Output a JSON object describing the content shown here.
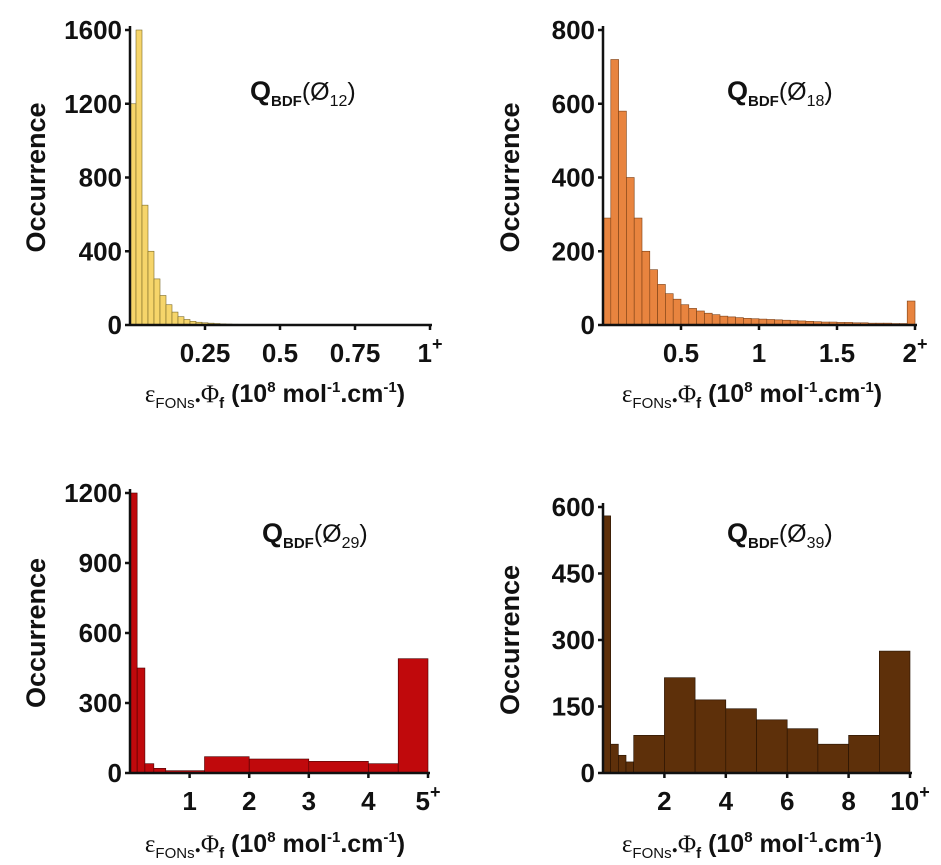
{
  "chart_data": [
    {
      "type": "bar",
      "title": "Q",
      "title_sub": "BDF",
      "title_paren": "(Ø",
      "title_index": "12",
      "title_close": ")",
      "ylabel": "Occurrence",
      "xlabel": {
        "eps": "ε",
        "eps_sub": "FONs",
        "dot": ".",
        "phi": "Φ",
        "phi_sub": "f",
        "unit_open": " (10",
        "unit_exp": "8",
        "unit_mid": " mol",
        "unit_exp2": "-1",
        "unit_mid2": ".cm",
        "unit_exp3": "-1",
        "unit_close": ")"
      },
      "xlim": [
        0,
        1
      ],
      "ylim": [
        0,
        1600
      ],
      "xticks": [
        {
          "v": 0.25,
          "label": "0.25"
        },
        {
          "v": 0.5,
          "label": "0.5"
        },
        {
          "v": 0.75,
          "label": "0.75"
        },
        {
          "v": 1,
          "label": "1",
          "sup": "+"
        }
      ],
      "yticks": [
        {
          "v": 0,
          "label": "0"
        },
        {
          "v": 400,
          "label": "400"
        },
        {
          "v": 800,
          "label": "800"
        },
        {
          "v": 1200,
          "label": "1200"
        },
        {
          "v": 1600,
          "label": "1600"
        }
      ],
      "bin_width": 0.02,
      "bin_start": 0,
      "values": [
        1200,
        1600,
        650,
        400,
        250,
        160,
        110,
        70,
        45,
        30,
        20,
        15,
        12,
        10,
        8,
        6,
        5,
        4,
        3,
        3,
        2,
        2,
        2,
        1,
        1,
        1,
        1,
        1,
        1,
        1,
        1,
        1,
        1,
        1,
        1,
        1,
        1,
        1,
        1,
        1,
        1,
        1,
        1,
        1,
        1,
        1,
        1,
        1,
        1,
        1
      ],
      "color": "#f6d56a",
      "edge": "#7a6a2a"
    },
    {
      "type": "bar",
      "title": "Q",
      "title_sub": "BDF",
      "title_paren": "(Ø",
      "title_index": "18",
      "title_close": ")",
      "ylabel": "Occurrence",
      "xlabel": {
        "eps": "ε",
        "eps_sub": "FONs",
        "dot": ".",
        "phi": "Φ",
        "phi_sub": "f",
        "unit_open": " (10",
        "unit_exp": "8",
        "unit_mid": " mol",
        "unit_exp2": "-1",
        "unit_mid2": ".cm",
        "unit_exp3": "-1",
        "unit_close": ")"
      },
      "xlim": [
        0,
        2
      ],
      "ylim": [
        0,
        800
      ],
      "xticks": [
        {
          "v": 0.5,
          "label": "0.5"
        },
        {
          "v": 1,
          "label": "1"
        },
        {
          "v": 1.5,
          "label": "1.5"
        },
        {
          "v": 2,
          "label": "2",
          "sup": "+"
        }
      ],
      "yticks": [
        {
          "v": 0,
          "label": "0"
        },
        {
          "v": 200,
          "label": "200"
        },
        {
          "v": 400,
          "label": "400"
        },
        {
          "v": 600,
          "label": "600"
        },
        {
          "v": 800,
          "label": "800"
        }
      ],
      "bin_width": 0.05,
      "bin_start": 0,
      "values": [
        290,
        720,
        580,
        400,
        290,
        200,
        150,
        110,
        85,
        70,
        55,
        45,
        38,
        32,
        28,
        24,
        22,
        20,
        18,
        17,
        16,
        15,
        14,
        13,
        12,
        11,
        10,
        9,
        8,
        8,
        7,
        7,
        6,
        6,
        5,
        5,
        5,
        4,
        4,
        65
      ],
      "color": "#e8843f",
      "edge": "#7a3f15"
    },
    {
      "type": "bar",
      "title": "Q",
      "title_sub": "BDF",
      "title_paren": "(Ø",
      "title_index": "29",
      "title_close": ")",
      "ylabel": "Occurrence",
      "xlabel": {
        "eps": "ε",
        "eps_sub": "FONs",
        "dot": ".",
        "phi": "Φ",
        "phi_sub": "f",
        "unit_open": " (10",
        "unit_exp": "8",
        "unit_mid": " mol",
        "unit_exp2": "-1",
        "unit_mid2": ".cm",
        "unit_exp3": "-1",
        "unit_close": ")"
      },
      "xlim": [
        0,
        5
      ],
      "ylim": [
        0,
        1200
      ],
      "xticks": [
        {
          "v": 1,
          "label": "1"
        },
        {
          "v": 2,
          "label": "2"
        },
        {
          "v": 3,
          "label": "3"
        },
        {
          "v": 4,
          "label": "4"
        },
        {
          "v": 5,
          "label": "5",
          "sup": "+"
        }
      ],
      "yticks": [
        {
          "v": 0,
          "label": "0"
        },
        {
          "v": 300,
          "label": "300"
        },
        {
          "v": 600,
          "label": "600"
        },
        {
          "v": 900,
          "label": "900"
        },
        {
          "v": 1200,
          "label": "1200"
        }
      ],
      "bins": [
        {
          "x0": 0.0,
          "x1": 0.12,
          "v": 1200
        },
        {
          "x0": 0.12,
          "x1": 0.25,
          "v": 450
        },
        {
          "x0": 0.25,
          "x1": 0.4,
          "v": 40
        },
        {
          "x0": 0.4,
          "x1": 0.6,
          "v": 20
        },
        {
          "x0": 0.6,
          "x1": 1.25,
          "v": 10
        },
        {
          "x0": 1.25,
          "x1": 2.0,
          "v": 70
        },
        {
          "x0": 2.0,
          "x1": 3.0,
          "v": 60
        },
        {
          "x0": 3.0,
          "x1": 4.0,
          "v": 50
        },
        {
          "x0": 4.0,
          "x1": 4.5,
          "v": 40
        },
        {
          "x0": 4.5,
          "x1": 5.0,
          "v": 490
        }
      ],
      "color": "#c0090c",
      "edge": "#4a0000"
    },
    {
      "type": "bar",
      "title": "Q",
      "title_sub": "BDF",
      "title_paren": "(Ø",
      "title_index": "39",
      "title_close": ")",
      "ylabel": "Occurrence",
      "xlabel": {
        "eps": "ε",
        "eps_sub": "FONs",
        "dot": ".",
        "phi": "Φ",
        "phi_sub": "f",
        "unit_open": " (10",
        "unit_exp": "8",
        "unit_mid": " mol",
        "unit_exp2": "-1",
        "unit_mid2": ".cm",
        "unit_exp3": "-1",
        "unit_close": ")"
      },
      "xlim": [
        0,
        10
      ],
      "ylim": [
        0,
        600
      ],
      "xticks": [
        {
          "v": 2,
          "label": "2"
        },
        {
          "v": 4,
          "label": "4"
        },
        {
          "v": 6,
          "label": "6"
        },
        {
          "v": 8,
          "label": "8"
        },
        {
          "v": 10,
          "label": "10",
          "sup": "+"
        }
      ],
      "yticks": [
        {
          "v": 0,
          "label": "0"
        },
        {
          "v": 150,
          "label": "150"
        },
        {
          "v": 300,
          "label": "300"
        },
        {
          "v": 450,
          "label": "450"
        },
        {
          "v": 600,
          "label": "600"
        }
      ],
      "bins": [
        {
          "x0": 0.0,
          "x1": 0.25,
          "v": 580
        },
        {
          "x0": 0.25,
          "x1": 0.5,
          "v": 65
        },
        {
          "x0": 0.5,
          "x1": 0.75,
          "v": 40
        },
        {
          "x0": 0.75,
          "x1": 1.0,
          "v": 25
        },
        {
          "x0": 1.0,
          "x1": 2.0,
          "v": 85
        },
        {
          "x0": 2.0,
          "x1": 3.0,
          "v": 215
        },
        {
          "x0": 3.0,
          "x1": 4.0,
          "v": 165
        },
        {
          "x0": 4.0,
          "x1": 5.0,
          "v": 145
        },
        {
          "x0": 5.0,
          "x1": 6.0,
          "v": 120
        },
        {
          "x0": 6.0,
          "x1": 7.0,
          "v": 100
        },
        {
          "x0": 7.0,
          "x1": 8.0,
          "v": 65
        },
        {
          "x0": 8.0,
          "x1": 9.0,
          "v": 85
        },
        {
          "x0": 9.0,
          "x1": 10.0,
          "v": 275
        }
      ],
      "color": "#5e300a",
      "edge": "#241000"
    }
  ]
}
